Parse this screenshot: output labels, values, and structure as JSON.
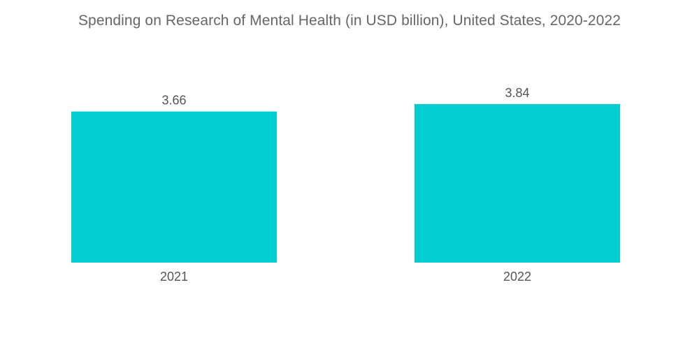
{
  "chart_data": {
    "type": "bar",
    "title": "Spending on Research of Mental Health (in USD billion), United States, 2020-2022",
    "categories": [
      "2021",
      "2022"
    ],
    "values": [
      3.66,
      3.84
    ],
    "xlabel": "",
    "ylabel": "",
    "ylim": [
      0,
      3.84
    ],
    "grid": false,
    "legend": "none",
    "bar_color": "#00CED1"
  }
}
